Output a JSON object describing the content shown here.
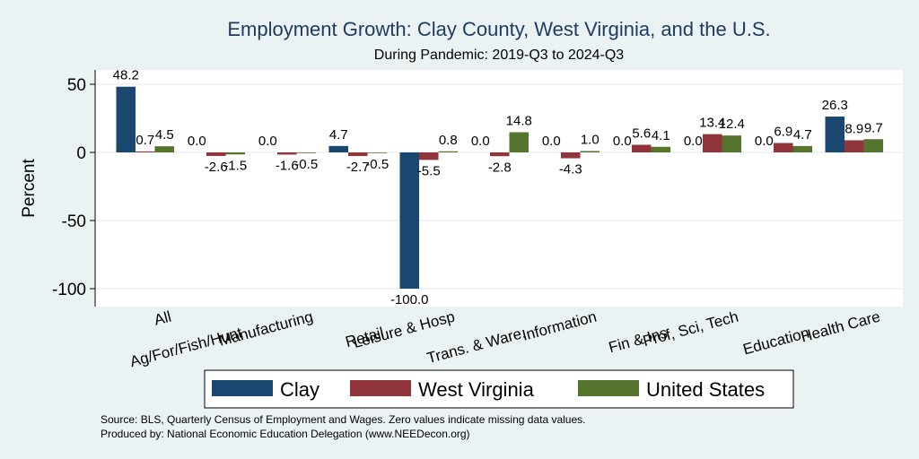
{
  "chart_data": {
    "type": "bar",
    "title": "Employment Growth: Clay County, West Virginia, and the U.S.",
    "subtitle": "During Pandemic: 2019-Q3 to 2024-Q3",
    "ylabel": "Percent",
    "xlabel": "",
    "ylim": [
      -105,
      62
    ],
    "yticks": [
      50,
      0,
      -50,
      -100
    ],
    "grid": true,
    "categories": [
      "All",
      "Ag/For/Fish/Hunt",
      "Manufacturing",
      "Retail",
      "Leisure & Hosp",
      "Trans. & Ware.",
      "Information",
      "Fin & Ins",
      "Prof, Sci, Tech",
      "Education",
      "Health Care"
    ],
    "series": [
      {
        "name": "Clay",
        "color": "#1a476f",
        "values": [
          48.2,
          0.0,
          0.0,
          4.7,
          -100.0,
          0.0,
          0.0,
          0.0,
          0.0,
          0.0,
          26.3
        ]
      },
      {
        "name": "West Virginia",
        "color": "#90353b",
        "values": [
          0.7,
          -2.6,
          -1.6,
          -2.7,
          -5.5,
          -2.8,
          -4.3,
          5.6,
          13.4,
          6.9,
          8.9
        ]
      },
      {
        "name": "United States",
        "color": "#55752f",
        "values": [
          4.5,
          -1.5,
          -0.5,
          -0.5,
          0.8,
          14.8,
          1.0,
          4.1,
          12.4,
          4.7,
          9.7
        ]
      }
    ],
    "legend_position": "bottom",
    "notes": [
      "Source: BLS, Quarterly Census of Employment and Wages. Zero values indicate missing data values.",
      "Produced by: National Economic Education Delegation (www.NEEDecon.org)"
    ]
  }
}
